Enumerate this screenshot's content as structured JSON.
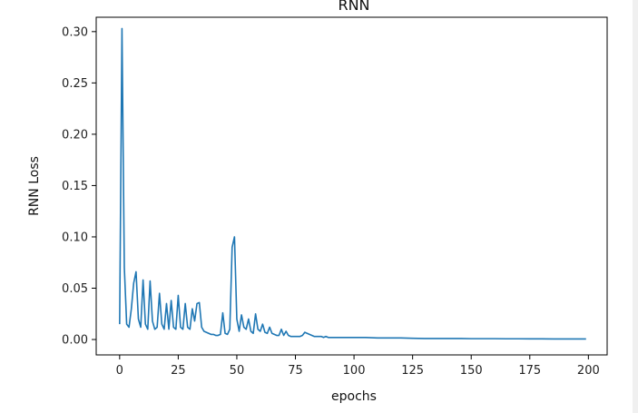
{
  "chart_data": {
    "type": "line",
    "title": "RNN",
    "xlabel": "epochs",
    "ylabel": "RNN Loss",
    "xlim": [
      -10,
      208
    ],
    "ylim": [
      -0.015,
      0.314
    ],
    "xticks": [
      0,
      25,
      50,
      75,
      100,
      125,
      150,
      175,
      200
    ],
    "xtick_labels": [
      "0",
      "25",
      "50",
      "75",
      "100",
      "125",
      "150",
      "175",
      "200"
    ],
    "yticks": [
      0.0,
      0.05,
      0.1,
      0.15,
      0.2,
      0.25,
      0.3
    ],
    "ytick_labels": [
      "0.00",
      "0.05",
      "0.10",
      "0.15",
      "0.20",
      "0.25",
      "0.30"
    ],
    "grid": false,
    "line_color": "#1f77b4",
    "series": [
      {
        "x": [
          0,
          1,
          2,
          3,
          4,
          5,
          6,
          7,
          8,
          9,
          10,
          11,
          12,
          13,
          14,
          15,
          16,
          17,
          18,
          19,
          20,
          21,
          22,
          23,
          24,
          25,
          26,
          27,
          28,
          29,
          30,
          31,
          32,
          33,
          34,
          35,
          36,
          37,
          38,
          39,
          40,
          41,
          42,
          43,
          44,
          45,
          46,
          47,
          48,
          49,
          50,
          51,
          52,
          53,
          54,
          55,
          56,
          57,
          58,
          59,
          60,
          61,
          62,
          63,
          64,
          65,
          66,
          67,
          68,
          69,
          70,
          71,
          72,
          73,
          74,
          75,
          76,
          77,
          78,
          79,
          80,
          81,
          82,
          83,
          84,
          85,
          86,
          87,
          88,
          89,
          90,
          95,
          100,
          105,
          110,
          115,
          120,
          125,
          130,
          135,
          140,
          145,
          150,
          155,
          160,
          165,
          170,
          175,
          180,
          185,
          190,
          195,
          199
        ],
        "y": [
          0.015,
          0.303,
          0.07,
          0.015,
          0.012,
          0.03,
          0.055,
          0.066,
          0.02,
          0.012,
          0.058,
          0.015,
          0.01,
          0.057,
          0.018,
          0.01,
          0.012,
          0.045,
          0.015,
          0.01,
          0.035,
          0.01,
          0.038,
          0.012,
          0.01,
          0.043,
          0.012,
          0.01,
          0.035,
          0.012,
          0.01,
          0.03,
          0.018,
          0.035,
          0.036,
          0.012,
          0.008,
          0.007,
          0.006,
          0.005,
          0.005,
          0.004,
          0.004,
          0.005,
          0.026,
          0.006,
          0.005,
          0.01,
          0.09,
          0.1,
          0.02,
          0.008,
          0.024,
          0.012,
          0.01,
          0.02,
          0.008,
          0.006,
          0.025,
          0.01,
          0.008,
          0.015,
          0.007,
          0.006,
          0.012,
          0.006,
          0.005,
          0.004,
          0.004,
          0.01,
          0.004,
          0.008,
          0.004,
          0.003,
          0.003,
          0.003,
          0.003,
          0.003,
          0.004,
          0.007,
          0.006,
          0.005,
          0.004,
          0.003,
          0.003,
          0.003,
          0.003,
          0.002,
          0.003,
          0.002,
          0.002,
          0.002,
          0.002,
          0.002,
          0.0015,
          0.0015,
          0.0015,
          0.0012,
          0.001,
          0.001,
          0.001,
          0.001,
          0.0008,
          0.0008,
          0.0008,
          0.0007,
          0.0007,
          0.0006,
          0.0006,
          0.0005,
          0.0005,
          0.0005,
          0.0005
        ]
      }
    ]
  }
}
